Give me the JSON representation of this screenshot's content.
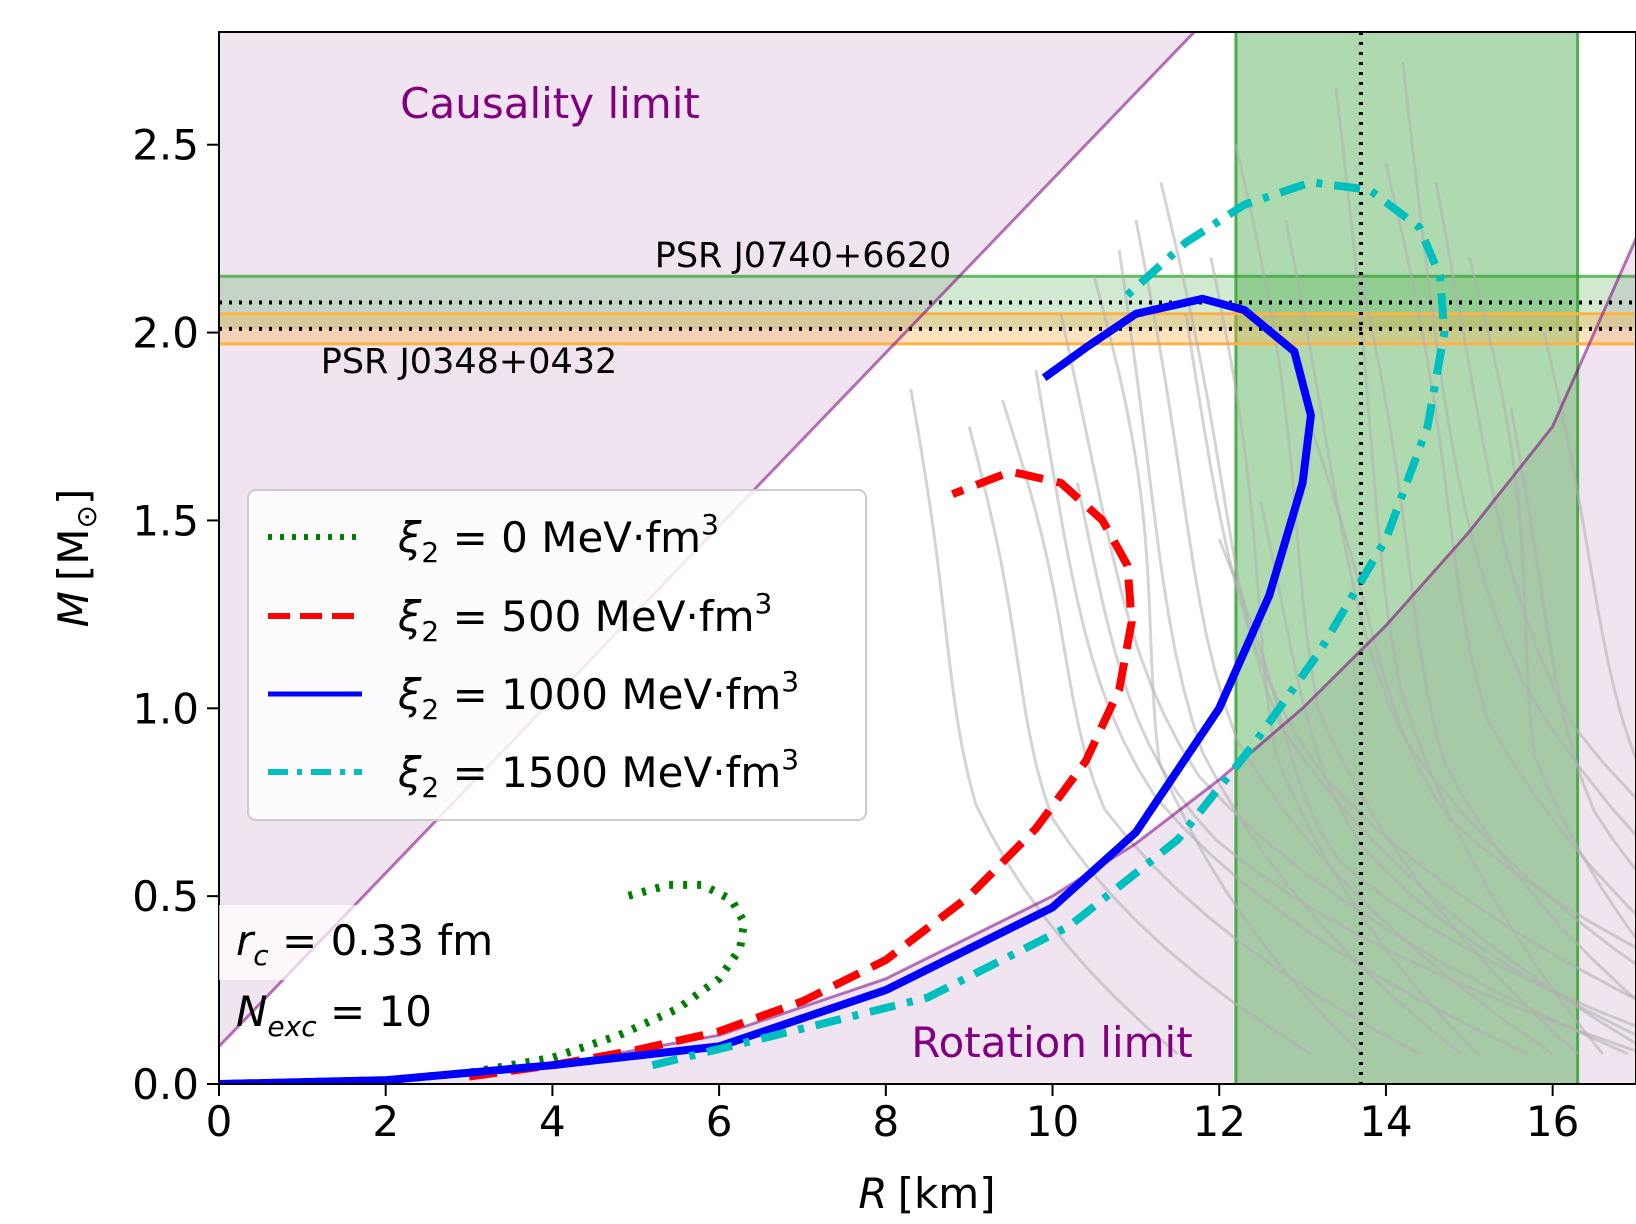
{
  "chart_data": {
    "type": "line",
    "xlabel_var": "R",
    "xlabel_unit": "[km]",
    "ylabel_var": "M",
    "ylabel_unit_main": "[M",
    "ylabel_unit_sub": "⊙",
    "ylabel_unit_close": "]",
    "xlim": [
      0,
      17
    ],
    "ylim": [
      0,
      2.8
    ],
    "xticks": [
      0,
      2,
      4,
      6,
      8,
      10,
      12,
      14,
      16
    ],
    "yticks": [
      0.0,
      0.5,
      1.0,
      1.5,
      2.0,
      2.5
    ],
    "xtick_labels": [
      "0",
      "2",
      "4",
      "6",
      "8",
      "10",
      "12",
      "14",
      "16"
    ],
    "ytick_labels": [
      "0.0",
      "0.5",
      "1.0",
      "1.5",
      "2.0",
      "2.5"
    ],
    "grid": false,
    "legend_position": "center-left",
    "series": [
      {
        "label_sym": "ξ",
        "label_sub": "2",
        "label_rest": " = 0 MeV·fm",
        "label_sup": "3",
        "color": "#007f00",
        "dash": "dotted",
        "x": [
          0,
          2,
          3,
          4,
          4.8,
          5.5,
          6.0,
          6.25,
          6.3,
          6.15,
          5.8,
          5.4,
          4.9
        ],
        "y": [
          0,
          0.01,
          0.03,
          0.07,
          0.13,
          0.2,
          0.28,
          0.36,
          0.43,
          0.49,
          0.53,
          0.53,
          0.5
        ]
      },
      {
        "label_sym": "ξ",
        "label_sub": "2",
        "label_rest": " = 500 MeV·fm",
        "label_sup": "3",
        "color": "#ff0000",
        "dash": "dashed",
        "x": [
          3,
          4,
          5,
          6,
          7,
          8,
          9,
          9.8,
          10.4,
          10.8,
          10.95,
          10.9,
          10.6,
          10.1,
          9.5,
          8.8
        ],
        "y": [
          0.02,
          0.05,
          0.09,
          0.14,
          0.22,
          0.33,
          0.5,
          0.68,
          0.86,
          1.05,
          1.23,
          1.38,
          1.5,
          1.6,
          1.63,
          1.57
        ]
      },
      {
        "label_sym": "ξ",
        "label_sub": "2",
        "label_rest": " = 1000 MeV·fm",
        "label_sup": "3",
        "color": "#0000ff",
        "dash": "solid",
        "x": [
          0,
          2,
          4,
          6,
          8,
          10,
          11,
          12,
          12.6,
          13.0,
          13.1,
          12.9,
          12.3,
          11.8,
          11.0,
          10.4,
          9.9
        ],
        "y": [
          0,
          0.01,
          0.05,
          0.1,
          0.25,
          0.47,
          0.67,
          1.0,
          1.3,
          1.6,
          1.78,
          1.95,
          2.06,
          2.09,
          2.05,
          1.96,
          1.88
        ]
      },
      {
        "label_sym": "ξ",
        "label_sub": "2",
        "label_rest": " = 1500 MeV·fm",
        "label_sup": "3",
        "color": "#00bfbf",
        "dash": "dashdot",
        "x": [
          5.2,
          6.5,
          8.5,
          10.2,
          11.5,
          12.4,
          13.2,
          14.0,
          14.5,
          14.7,
          14.65,
          14.4,
          13.8,
          13.1,
          12.3,
          11.6,
          10.8
        ],
        "y": [
          0.05,
          0.12,
          0.23,
          0.42,
          0.65,
          0.9,
          1.15,
          1.45,
          1.75,
          2.0,
          2.15,
          2.28,
          2.38,
          2.4,
          2.34,
          2.24,
          2.08
        ]
      }
    ],
    "annotations": {
      "causality": "Causality limit",
      "rotation": "Rotation limit",
      "psr1": "PSR J0740+6620",
      "psr2": "PSR J0348+0432",
      "rc_sym": "r",
      "rc_sub": "c",
      "rc_rest": " = 0.33 fm",
      "nexc_sym": "N",
      "nexc_sub": "exc",
      "nexc_rest": " = 10"
    },
    "bands": {
      "psr1_M": [
        2.01,
        2.15
      ],
      "psr2_M": [
        1.97,
        2.05
      ],
      "radius_band_R": [
        12.2,
        16.3
      ],
      "dotted_hlines_M": [
        2.08,
        2.01
      ],
      "dotted_vline_R": 13.7
    },
    "limits": {
      "causality": {
        "x": [
          0,
          11.7
        ],
        "y": [
          0.1,
          2.8
        ]
      },
      "rotation": {
        "x": [
          0,
          2,
          4,
          6,
          8,
          10,
          11,
          12,
          13,
          14,
          15,
          16,
          17
        ],
        "y": [
          0,
          0.01,
          0.05,
          0.13,
          0.28,
          0.5,
          0.64,
          0.81,
          1.0,
          1.22,
          1.47,
          1.75,
          2.25
        ]
      }
    },
    "colors": {
      "purple": "#800080",
      "purple_fill": "#f0e4f0",
      "green_band": "#2e9e2e",
      "orange_band": "#ffb347",
      "gray_curves": "#b0b0b0"
    }
  }
}
